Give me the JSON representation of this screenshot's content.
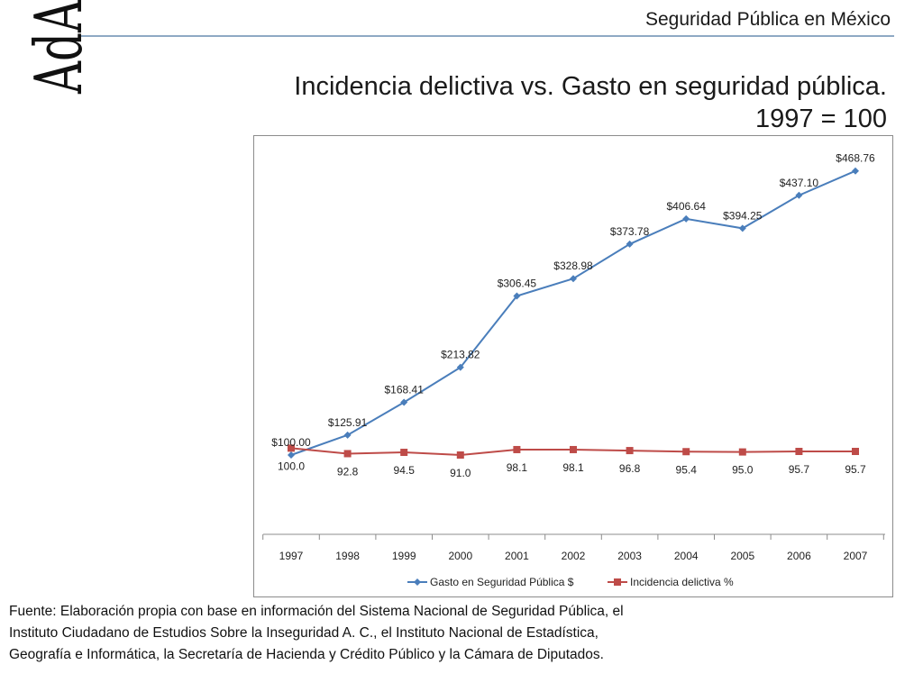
{
  "logo": {
    "text": "AdA"
  },
  "header": {
    "title": "Seguridad Pública en México"
  },
  "slide": {
    "title_line1": "Incidencia delictiva vs. Gasto en seguridad pública.",
    "title_line2": "1997 = 100"
  },
  "colors": {
    "series_blue": "#4a7ebb",
    "series_red": "#be4b48",
    "rule": "#8fa9c4",
    "frame": "#8c8c8c"
  },
  "chart_data": {
    "type": "line",
    "title": "",
    "xlabel": "",
    "ylabel": "",
    "ylim": [
      0,
      500
    ],
    "grid": false,
    "legend_position": "bottom",
    "categories": [
      "1997",
      "1998",
      "1999",
      "2000",
      "2001",
      "2002",
      "2003",
      "2004",
      "2005",
      "2006",
      "2007"
    ],
    "series": [
      {
        "name": "Gasto en Seguridad Pública $",
        "marker": "diamond",
        "color": "#4a7ebb",
        "values": [
          100.0,
          125.91,
          168.41,
          213.82,
          306.45,
          328.98,
          373.78,
          406.64,
          394.25,
          437.1,
          468.76
        ],
        "labels": [
          "$100.00",
          "$125.91",
          "$168.41",
          "$213.82",
          "$306.45",
          "$328.98",
          "$373.78",
          "$406.64",
          "$394.25",
          "$437.10",
          "$468.76"
        ]
      },
      {
        "name": "Incidencia delictiva %",
        "marker": "square",
        "color": "#be4b48",
        "values": [
          100.0,
          92.8,
          94.5,
          91.0,
          98.1,
          98.1,
          96.8,
          95.4,
          95.0,
          95.7,
          95.7
        ],
        "labels": [
          "100.0",
          "92.8",
          "94.5",
          "91.0",
          "98.1",
          "98.1",
          "96.8",
          "95.4",
          "95.0",
          "95.7",
          "95.7"
        ]
      }
    ]
  },
  "source": {
    "text": "Fuente: Elaboración propia con base en información del Sistema Nacional de Seguridad Pública, el Instituto Ciudadano de Estudios Sobre la Inseguridad A. C., el Instituto Nacional de Estadística, Geografía e Informática, la Secretaría de Hacienda y Crédito Público y la Cámara de Diputados."
  }
}
